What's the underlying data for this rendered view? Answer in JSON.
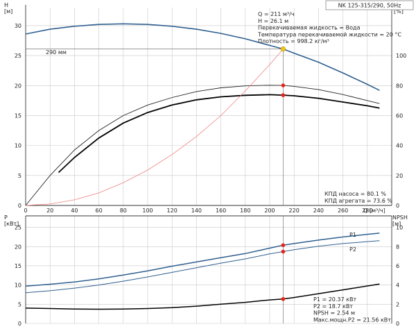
{
  "header": {
    "pump_label": "NK 125-315/290, 50Hz"
  },
  "chart_data": [
    {
      "type": "line",
      "title": "",
      "ylabel_left": "H\n[м]",
      "ylabel_right": "eta\n[%]",
      "xlabel": "Q [м³/ч]",
      "xlim": [
        0,
        300
      ],
      "ylim": [
        0,
        33
      ],
      "y2lim": [
        0,
        132
      ],
      "x_ticks": [
        0,
        20,
        40,
        60,
        80,
        100,
        120,
        140,
        160,
        180,
        200,
        220,
        240,
        260,
        280
      ],
      "y_ticks": [
        0,
        5,
        10,
        15,
        20,
        25,
        30
      ],
      "y2_ticks": [
        0,
        20,
        40,
        60,
        80,
        100
      ],
      "grid": true,
      "curve_label": "290 мм",
      "series": [
        {
          "axis": "left",
          "color": "#2f5f8f",
          "x": [
            0,
            20,
            40,
            60,
            80,
            100,
            120,
            140,
            160,
            180,
            200,
            211,
            220,
            240,
            260,
            280,
            290
          ],
          "y": [
            28.6,
            29.4,
            29.9,
            30.2,
            30.3,
            30.2,
            29.9,
            29.4,
            28.7,
            27.8,
            26.7,
            26.1,
            25.4,
            23.9,
            22.1,
            20.2,
            19.2
          ]
        },
        {
          "axis": "right",
          "color": "#222222",
          "x": [
            0,
            20,
            40,
            60,
            80,
            100,
            120,
            140,
            160,
            180,
            200,
            211,
            220,
            240,
            260,
            280,
            290
          ],
          "y": [
            0,
            20,
            37,
            50,
            60,
            67,
            72,
            76,
            78.5,
            79.8,
            80.2,
            80.1,
            79.5,
            77.3,
            74.0,
            70.0,
            68.0
          ]
        },
        {
          "axis": "right",
          "color": "#000000",
          "x": [
            27,
            40,
            60,
            80,
            100,
            120,
            140,
            160,
            180,
            200,
            211,
            220,
            240,
            260,
            280,
            290
          ],
          "y": [
            22,
            32,
            45,
            55,
            62,
            67,
            70.5,
            72.5,
            73.5,
            73.9,
            73.6,
            73.2,
            71.5,
            69.0,
            66.5,
            65.0
          ]
        },
        {
          "axis": "left",
          "color": "#f08080",
          "x": [
            0,
            20,
            40,
            60,
            80,
            100,
            120,
            140,
            160,
            180,
            200,
            211
          ],
          "y": [
            0,
            0.24,
            0.94,
            2.1,
            3.8,
            5.9,
            8.5,
            11.5,
            15.0,
            19.1,
            23.5,
            26.1
          ]
        }
      ],
      "duty_point": {
        "x": 211,
        "y": 26.1
      },
      "eta_points": [
        {
          "x": 211,
          "y": 80.1
        },
        {
          "x": 211,
          "y": 73.6
        }
      ],
      "info": [
        "Q = 211 м³/ч",
        "H = 26.1 м",
        "Перекачиваемая жидкость = Вода",
        "Температура перекачиваемой жидкости = 20 °C",
        "Плотность = 998.2 кг/м³"
      ],
      "eta_info": [
        "КПД насоса = 80.1 %",
        "КПД агрегата = 73.6 %"
      ]
    },
    {
      "type": "line",
      "title": "",
      "ylabel_left": "P\n[кВт]",
      "ylabel_right": "NPSH\n[м]",
      "xlim": [
        0,
        300
      ],
      "ylim": [
        0,
        28
      ],
      "y2lim": [
        0,
        11.2
      ],
      "y_ticks": [
        0,
        5,
        10,
        15,
        20,
        25
      ],
      "y2_ticks": [
        0,
        2,
        4,
        6,
        8,
        10
      ],
      "grid": true,
      "series": [
        {
          "name": "P1",
          "axis": "left",
          "color": "#2f5f8f",
          "x": [
            0,
            20,
            40,
            60,
            80,
            100,
            120,
            140,
            160,
            180,
            200,
            211,
            220,
            240,
            260,
            280,
            290
          ],
          "y": [
            9.7,
            10.2,
            10.8,
            11.6,
            12.6,
            13.7,
            14.9,
            16.0,
            17.1,
            18.2,
            19.6,
            20.37,
            20.8,
            21.7,
            22.5,
            23.2,
            23.5
          ]
        },
        {
          "name": "P2",
          "axis": "left",
          "color": "#2f5f8f",
          "x": [
            0,
            20,
            40,
            60,
            80,
            100,
            120,
            140,
            160,
            180,
            200,
            211,
            220,
            240,
            260,
            280,
            290
          ],
          "y": [
            8.0,
            8.5,
            9.2,
            10.0,
            11.0,
            12.1,
            13.3,
            14.5,
            15.7,
            16.8,
            18.1,
            18.7,
            19.2,
            20.1,
            20.8,
            21.3,
            21.56
          ]
        },
        {
          "axis": "right",
          "color": "#000000",
          "x": [
            0,
            20,
            40,
            60,
            80,
            100,
            120,
            140,
            160,
            180,
            200,
            211,
            220,
            240,
            260,
            280,
            290
          ],
          "y": [
            1.6,
            1.55,
            1.5,
            1.48,
            1.5,
            1.55,
            1.65,
            1.8,
            2.0,
            2.2,
            2.45,
            2.54,
            2.7,
            3.1,
            3.5,
            3.9,
            4.1
          ]
        }
      ],
      "points": [
        {
          "axis": "left",
          "x": 211,
          "y": 20.37
        },
        {
          "axis": "left",
          "x": 211,
          "y": 18.7
        },
        {
          "axis": "right",
          "x": 211,
          "y": 2.54
        }
      ],
      "legend_labels": [
        "P1",
        "P2"
      ],
      "info": [
        "P1 = 20.37 кВт",
        "P2 = 18.7 кВт",
        "NPSH = 2.54 м",
        "Макс.мощн.P2 = 21.56 кВт"
      ]
    }
  ]
}
